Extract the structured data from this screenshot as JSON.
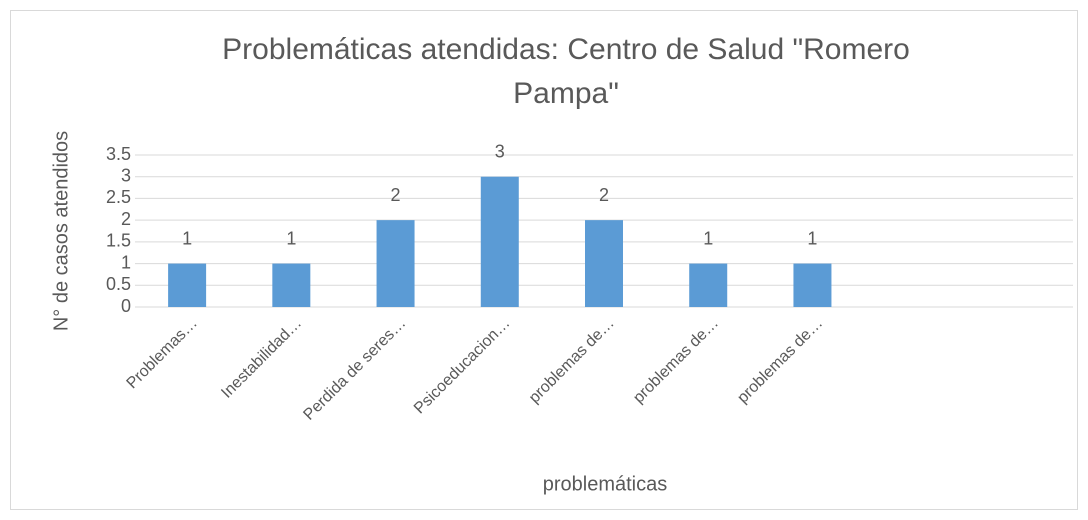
{
  "chart_data": {
    "type": "bar",
    "title": "Problemáticas atendidas: Centro de Salud \"Romero Pampa\"",
    "x_label": "problemáticas",
    "y_label": "N° de casos atendidos",
    "categories": [
      "Problemas…",
      "Inestabilidad…",
      "Perdida de seres…",
      "Psicoeducacion…",
      "problemas de…",
      "problemas de…",
      "problemas de…",
      null,
      null
    ],
    "values": [
      1,
      1,
      2,
      3,
      2,
      1,
      1,
      null,
      null
    ],
    "color": "#5b9bd5",
    "ylim": [
      0,
      3.5
    ],
    "yticks": [
      0,
      0.5,
      1,
      1.5,
      2,
      2.5,
      3,
      3.5
    ],
    "grid": true
  }
}
